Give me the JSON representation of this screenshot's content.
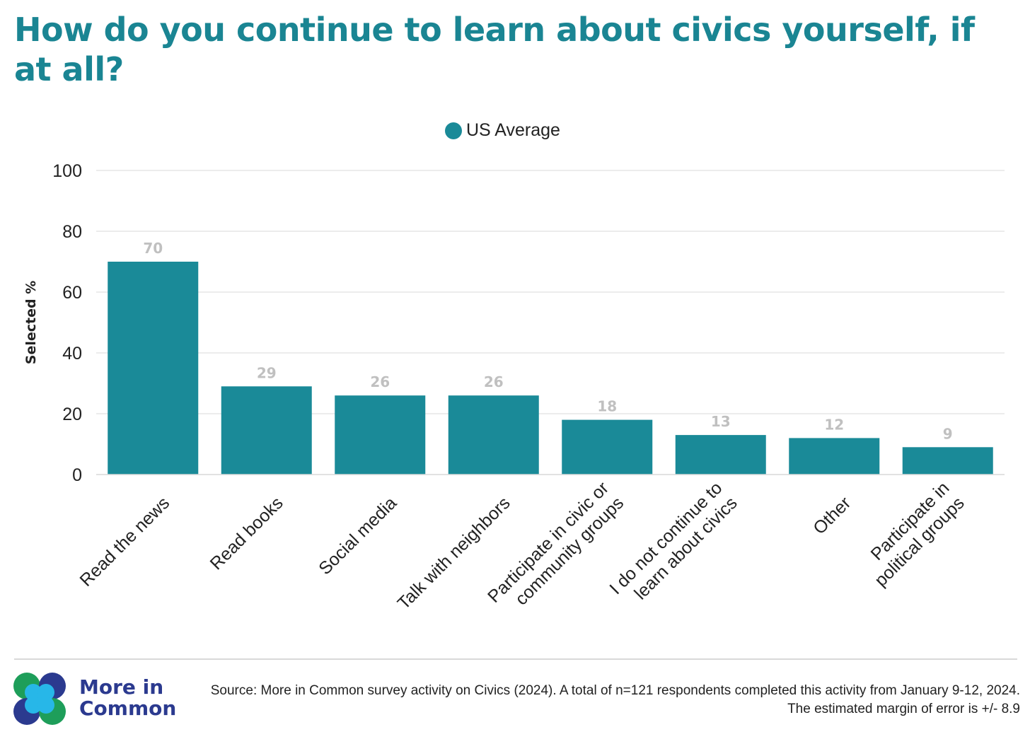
{
  "title": "How do you continue to learn about civics yourself, if at all?",
  "chart_data": {
    "type": "bar",
    "title": "How do you continue to learn about civics yourself, if at all?",
    "categories": [
      "Read the news",
      "Read books",
      "Social media",
      "Talk with neighbors",
      "Participate in civic or community groups",
      "I do not continue to learn about civics",
      "Other",
      "Participate in political groups"
    ],
    "category_lines": [
      [
        "Read the news"
      ],
      [
        "Read books"
      ],
      [
        "Social media"
      ],
      [
        "Talk with neighbors"
      ],
      [
        "Participate in civic or",
        "community groups"
      ],
      [
        "I do not continue to",
        "learn about civics"
      ],
      [
        "Other"
      ],
      [
        "Participate in",
        "political groups"
      ]
    ],
    "series": [
      {
        "name": "US Average",
        "values": [
          70,
          29,
          26,
          26,
          18,
          13,
          12,
          9
        ]
      }
    ],
    "xlabel": "",
    "ylabel": "Selected %",
    "ylim": [
      0,
      100
    ],
    "yticks": [
      0,
      20,
      40,
      60,
      80,
      100
    ],
    "grid": true,
    "legend": "top-center",
    "colors": {
      "bar": "#1a8a98",
      "data_label": "#c0c0c0",
      "grid": "#e6e6e6"
    }
  },
  "footer": {
    "brand_line1": "More in",
    "brand_line2": "Common",
    "source": "Source: More in Common survey activity on Civics (2024). A total of n=121 respondents completed this activity from January 9-12, 2024. The estimated margin of error is +/- 8.9"
  },
  "logo_colors": [
    "#1e9e5a",
    "#27b7e8",
    "#2b3a8f"
  ]
}
